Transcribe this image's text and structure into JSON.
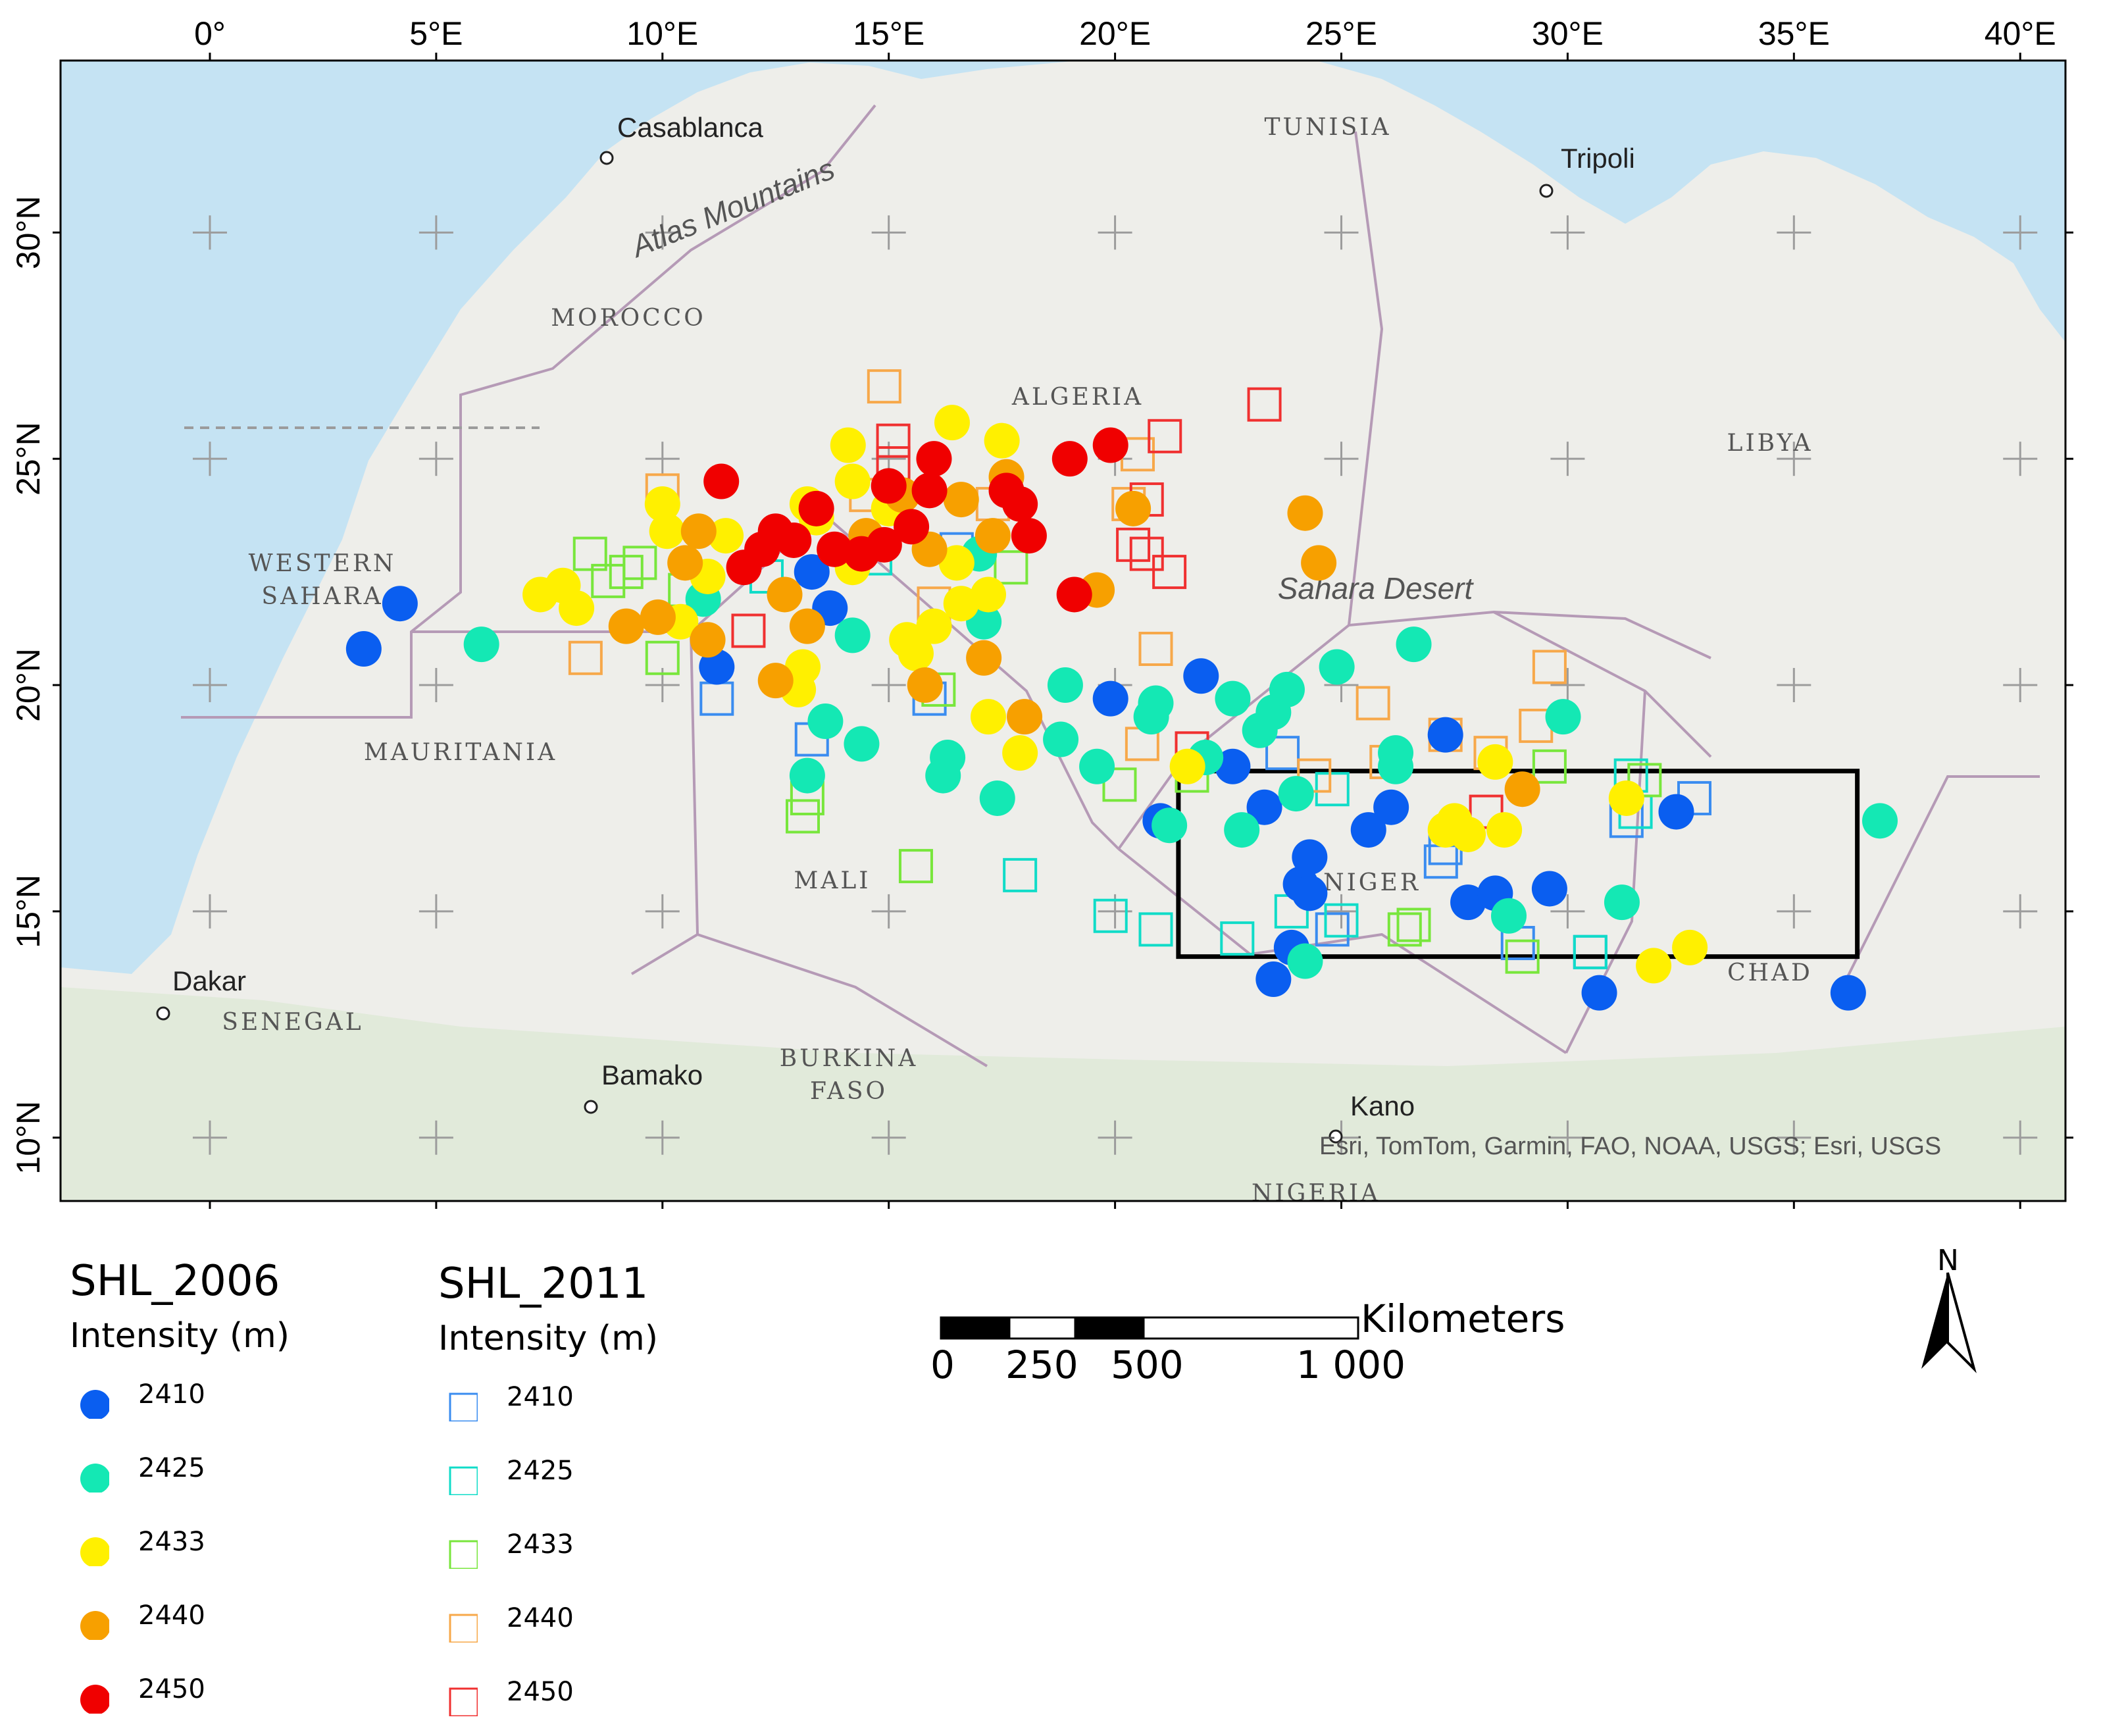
{
  "map": {
    "lon_ticks": [
      "0°",
      "5°E",
      "10°E",
      "15°E",
      "20°E",
      "25°E",
      "30°E",
      "35°E",
      "40°E"
    ],
    "lat_ticks": [
      "10°N",
      "15°N",
      "20°N",
      "25°N",
      "30°N"
    ],
    "lon_values": [
      0,
      5,
      10,
      15,
      20,
      25,
      30,
      35,
      40
    ],
    "lat_values": [
      10,
      15,
      20,
      25,
      30
    ],
    "extent": {
      "lon_min": -3.3,
      "lon_max": 41.0,
      "lat_min": 8.6,
      "lat_max": 33.8
    },
    "country_labels": [
      "MOROCCO",
      "ALGERIA",
      "TUNISIA",
      "LIBYA",
      "WESTERN SAHARA",
      "MAURITANIA",
      "MALI",
      "NIGER",
      "CHAD",
      "SENEGAL",
      "BURKINA FASO",
      "NIGERIA"
    ],
    "place_labels": [
      "Casablanca",
      "Tripoli",
      "Dakar",
      "Bamako",
      "Kano"
    ],
    "physical_labels": [
      "Atlas Mountains",
      "Sahara Desert"
    ],
    "attribution": "Esri, TomTom, Garmin, FAO, NOAA, USGS; Esri, USGS",
    "study_area_box": {
      "lon_min": 21.4,
      "lon_max": 36.4,
      "lat_min": 14.0,
      "lat_max": 18.1
    },
    "colors": {
      "sea": "#c5e3f3",
      "land": "#eeeeea",
      "border": "#b59ab6",
      "frame": "#000000"
    }
  },
  "legend": {
    "shl_2006": {
      "title": "SHL_2006",
      "subtitle": "Intensity (m)",
      "symbol": "filled-circle",
      "items": [
        {
          "label": "2410",
          "color": "#0a5ef0"
        },
        {
          "label": "2425",
          "color": "#14e8b4"
        },
        {
          "label": "2433",
          "color": "#fff000"
        },
        {
          "label": "2440",
          "color": "#f7a000"
        },
        {
          "label": "2450",
          "color": "#f00000"
        }
      ]
    },
    "shl_2011": {
      "title": "SHL_2011",
      "subtitle": "Intensity (m)",
      "symbol": "hollow-square",
      "items": [
        {
          "label": "2410",
          "color": "#3a8cf0"
        },
        {
          "label": "2425",
          "color": "#10dcc8"
        },
        {
          "label": "2433",
          "color": "#78e63c"
        },
        {
          "label": "2440",
          "color": "#f7a84a"
        },
        {
          "label": "2450",
          "color": "#f03030"
        }
      ]
    }
  },
  "scale_bar": {
    "unit": "Kilometers",
    "labels": [
      "0",
      "250",
      "500",
      "1 000"
    ]
  },
  "north_arrow": {
    "label": "N"
  },
  "points_2006": [
    {
      "lon": 3.4,
      "lat": 20.8,
      "i": 0
    },
    {
      "lon": 4.2,
      "lat": 21.8,
      "i": 0
    },
    {
      "lon": 11.2,
      "lat": 20.4,
      "i": 0
    },
    {
      "lon": 13.3,
      "lat": 22.5,
      "i": 0
    },
    {
      "lon": 13.7,
      "lat": 21.7,
      "i": 0
    },
    {
      "lon": 19.9,
      "lat": 19.7,
      "i": 0
    },
    {
      "lon": 21.9,
      "lat": 20.2,
      "i": 0
    },
    {
      "lon": 23.3,
      "lat": 17.3,
      "i": 0
    },
    {
      "lon": 24.3,
      "lat": 16.2,
      "i": 0
    },
    {
      "lon": 24.1,
      "lat": 15.6,
      "i": 0
    },
    {
      "lon": 24.3,
      "lat": 15.4,
      "i": 0
    },
    {
      "lon": 23.9,
      "lat": 14.2,
      "i": 0
    },
    {
      "lon": 23.5,
      "lat": 13.5,
      "i": 0
    },
    {
      "lon": 25.6,
      "lat": 16.8,
      "i": 0
    },
    {
      "lon": 26.1,
      "lat": 17.3,
      "i": 0
    },
    {
      "lon": 27.3,
      "lat": 18.9,
      "i": 0
    },
    {
      "lon": 27.8,
      "lat": 15.2,
      "i": 0
    },
    {
      "lon": 28.4,
      "lat": 15.4,
      "i": 0
    },
    {
      "lon": 29.6,
      "lat": 15.5,
      "i": 0
    },
    {
      "lon": 30.7,
      "lat": 13.2,
      "i": 0
    },
    {
      "lon": 32.4,
      "lat": 17.2,
      "i": 0
    },
    {
      "lon": 36.2,
      "lat": 13.2,
      "i": 0
    },
    {
      "lon": 21.0,
      "lat": 17.0,
      "i": 0
    },
    {
      "lon": 22.6,
      "lat": 18.2,
      "i": 0
    },
    {
      "lon": 6.0,
      "lat": 20.9,
      "i": 1
    },
    {
      "lon": 10.9,
      "lat": 21.9,
      "i": 1
    },
    {
      "lon": 13.2,
      "lat": 18.0,
      "i": 1
    },
    {
      "lon": 13.6,
      "lat": 19.2,
      "i": 1
    },
    {
      "lon": 14.4,
      "lat": 18.7,
      "i": 1
    },
    {
      "lon": 14.2,
      "lat": 21.1,
      "i": 1
    },
    {
      "lon": 16.3,
      "lat": 18.4,
      "i": 1
    },
    {
      "lon": 16.2,
      "lat": 18.0,
      "i": 1
    },
    {
      "lon": 17.1,
      "lat": 21.4,
      "i": 1
    },
    {
      "lon": 17.0,
      "lat": 22.9,
      "i": 1
    },
    {
      "lon": 17.4,
      "lat": 17.5,
      "i": 1
    },
    {
      "lon": 18.8,
      "lat": 18.8,
      "i": 1
    },
    {
      "lon": 18.9,
      "lat": 20.0,
      "i": 1
    },
    {
      "lon": 19.6,
      "lat": 18.2,
      "i": 1
    },
    {
      "lon": 20.9,
      "lat": 19.6,
      "i": 1
    },
    {
      "lon": 20.8,
      "lat": 19.3,
      "i": 1
    },
    {
      "lon": 21.2,
      "lat": 16.9,
      "i": 1
    },
    {
      "lon": 22.0,
      "lat": 18.4,
      "i": 1
    },
    {
      "lon": 22.6,
      "lat": 19.7,
      "i": 1
    },
    {
      "lon": 22.8,
      "lat": 16.8,
      "i": 1
    },
    {
      "lon": 23.2,
      "lat": 19.0,
      "i": 1
    },
    {
      "lon": 23.5,
      "lat": 19.4,
      "i": 1
    },
    {
      "lon": 23.8,
      "lat": 19.9,
      "i": 1
    },
    {
      "lon": 24.0,
      "lat": 17.6,
      "i": 1
    },
    {
      "lon": 24.2,
      "lat": 13.9,
      "i": 1
    },
    {
      "lon": 24.9,
      "lat": 20.4,
      "i": 1
    },
    {
      "lon": 26.2,
      "lat": 18.5,
      "i": 1
    },
    {
      "lon": 26.2,
      "lat": 18.2,
      "i": 1
    },
    {
      "lon": 26.6,
      "lat": 20.9,
      "i": 1
    },
    {
      "lon": 28.7,
      "lat": 14.9,
      "i": 1
    },
    {
      "lon": 29.9,
      "lat": 19.3,
      "i": 1
    },
    {
      "lon": 31.2,
      "lat": 15.2,
      "i": 1
    },
    {
      "lon": 36.9,
      "lat": 17.0,
      "i": 1
    },
    {
      "lon": 7.3,
      "lat": 22.0,
      "i": 2
    },
    {
      "lon": 7.8,
      "lat": 22.2,
      "i": 2
    },
    {
      "lon": 8.1,
      "lat": 21.7,
      "i": 2
    },
    {
      "lon": 10.0,
      "lat": 24.0,
      "i": 2
    },
    {
      "lon": 10.1,
      "lat": 23.4,
      "i": 2
    },
    {
      "lon": 10.4,
      "lat": 21.4,
      "i": 2
    },
    {
      "lon": 11.0,
      "lat": 22.4,
      "i": 2
    },
    {
      "lon": 11.4,
      "lat": 23.3,
      "i": 2
    },
    {
      "lon": 13.1,
      "lat": 20.4,
      "i": 2
    },
    {
      "lon": 13.0,
      "lat": 19.9,
      "i": 2
    },
    {
      "lon": 13.2,
      "lat": 24.0,
      "i": 2
    },
    {
      "lon": 13.4,
      "lat": 23.7,
      "i": 2
    },
    {
      "lon": 14.1,
      "lat": 25.3,
      "i": 2
    },
    {
      "lon": 14.2,
      "lat": 24.5,
      "i": 2
    },
    {
      "lon": 14.2,
      "lat": 22.6,
      "i": 2
    },
    {
      "lon": 15.0,
      "lat": 23.9,
      "i": 2
    },
    {
      "lon": 15.6,
      "lat": 20.7,
      "i": 2
    },
    {
      "lon": 15.4,
      "lat": 21.0,
      "i": 2
    },
    {
      "lon": 16.0,
      "lat": 21.3,
      "i": 2
    },
    {
      "lon": 16.6,
      "lat": 21.8,
      "i": 2
    },
    {
      "lon": 16.4,
      "lat": 25.8,
      "i": 2
    },
    {
      "lon": 17.2,
      "lat": 22.0,
      "i": 2
    },
    {
      "lon": 17.5,
      "lat": 25.4,
      "i": 2
    },
    {
      "lon": 17.2,
      "lat": 19.3,
      "i": 2
    },
    {
      "lon": 17.9,
      "lat": 18.5,
      "i": 2
    },
    {
      "lon": 16.5,
      "lat": 22.7,
      "i": 2
    },
    {
      "lon": 21.6,
      "lat": 18.2,
      "i": 2
    },
    {
      "lon": 27.3,
      "lat": 16.8,
      "i": 2
    },
    {
      "lon": 27.5,
      "lat": 17.0,
      "i": 2
    },
    {
      "lon": 27.8,
      "lat": 16.7,
      "i": 2
    },
    {
      "lon": 28.6,
      "lat": 16.8,
      "i": 2
    },
    {
      "lon": 28.4,
      "lat": 18.3,
      "i": 2
    },
    {
      "lon": 31.3,
      "lat": 17.5,
      "i": 2
    },
    {
      "lon": 31.9,
      "lat": 13.8,
      "i": 2
    },
    {
      "lon": 32.7,
      "lat": 14.2,
      "i": 2
    },
    {
      "lon": 9.2,
      "lat": 21.3,
      "i": 3
    },
    {
      "lon": 9.9,
      "lat": 21.5,
      "i": 3
    },
    {
      "lon": 10.5,
      "lat": 22.7,
      "i": 3
    },
    {
      "lon": 10.8,
      "lat": 23.4,
      "i": 3
    },
    {
      "lon": 11.0,
      "lat": 21.0,
      "i": 3
    },
    {
      "lon": 12.5,
      "lat": 20.1,
      "i": 3
    },
    {
      "lon": 12.7,
      "lat": 22.0,
      "i": 3
    },
    {
      "lon": 13.2,
      "lat": 21.3,
      "i": 3
    },
    {
      "lon": 14.5,
      "lat": 23.3,
      "i": 3
    },
    {
      "lon": 15.3,
      "lat": 24.2,
      "i": 3
    },
    {
      "lon": 15.9,
      "lat": 23.0,
      "i": 3
    },
    {
      "lon": 15.8,
      "lat": 20.0,
      "i": 3
    },
    {
      "lon": 16.6,
      "lat": 24.1,
      "i": 3
    },
    {
      "lon": 17.1,
      "lat": 20.6,
      "i": 3
    },
    {
      "lon": 17.3,
      "lat": 23.3,
      "i": 3
    },
    {
      "lon": 17.6,
      "lat": 24.6,
      "i": 3
    },
    {
      "lon": 18.0,
      "lat": 19.3,
      "i": 3
    },
    {
      "lon": 19.6,
      "lat": 22.1,
      "i": 3
    },
    {
      "lon": 20.4,
      "lat": 23.9,
      "i": 3
    },
    {
      "lon": 24.2,
      "lat": 23.8,
      "i": 3
    },
    {
      "lon": 24.5,
      "lat": 22.7,
      "i": 3
    },
    {
      "lon": 29.0,
      "lat": 17.7,
      "i": 3
    },
    {
      "lon": 11.3,
      "lat": 24.5,
      "i": 4
    },
    {
      "lon": 11.8,
      "lat": 22.6,
      "i": 4
    },
    {
      "lon": 12.2,
      "lat": 23.0,
      "i": 4
    },
    {
      "lon": 12.5,
      "lat": 23.4,
      "i": 4
    },
    {
      "lon": 12.9,
      "lat": 23.2,
      "i": 4
    },
    {
      "lon": 13.4,
      "lat": 23.9,
      "i": 4
    },
    {
      "lon": 13.8,
      "lat": 23.0,
      "i": 4
    },
    {
      "lon": 14.4,
      "lat": 22.9,
      "i": 4
    },
    {
      "lon": 14.9,
      "lat": 23.1,
      "i": 4
    },
    {
      "lon": 15.0,
      "lat": 24.4,
      "i": 4
    },
    {
      "lon": 15.5,
      "lat": 23.5,
      "i": 4
    },
    {
      "lon": 15.9,
      "lat": 24.3,
      "i": 4
    },
    {
      "lon": 16.0,
      "lat": 25.0,
      "i": 4
    },
    {
      "lon": 17.6,
      "lat": 24.3,
      "i": 4
    },
    {
      "lon": 17.9,
      "lat": 24.0,
      "i": 4
    },
    {
      "lon": 18.1,
      "lat": 23.3,
      "i": 4
    },
    {
      "lon": 19.0,
      "lat": 25.0,
      "i": 4
    },
    {
      "lon": 19.9,
      "lat": 25.3,
      "i": 4
    },
    {
      "lon": 19.1,
      "lat": 22.0,
      "i": 4
    }
  ],
  "points_2011": [
    {
      "lon": 11.2,
      "lat": 19.7,
      "i": 0
    },
    {
      "lon": 13.3,
      "lat": 18.8,
      "i": 0
    },
    {
      "lon": 15.9,
      "lat": 19.7,
      "i": 0
    },
    {
      "lon": 16.5,
      "lat": 23.0,
      "i": 0
    },
    {
      "lon": 23.7,
      "lat": 18.5,
      "i": 0
    },
    {
      "lon": 27.2,
      "lat": 16.1,
      "i": 0
    },
    {
      "lon": 27.3,
      "lat": 16.4,
      "i": 0
    },
    {
      "lon": 28.9,
      "lat": 14.3,
      "i": 0
    },
    {
      "lon": 30.5,
      "lat": 14.1,
      "i": 0
    },
    {
      "lon": 31.3,
      "lat": 17.0,
      "i": 0
    },
    {
      "lon": 32.8,
      "lat": 17.5,
      "i": 0
    },
    {
      "lon": 24.8,
      "lat": 14.6,
      "i": 0
    },
    {
      "lon": 17.9,
      "lat": 15.8,
      "i": 1
    },
    {
      "lon": 19.9,
      "lat": 14.9,
      "i": 1
    },
    {
      "lon": 20.9,
      "lat": 14.6,
      "i": 1
    },
    {
      "lon": 22.7,
      "lat": 14.4,
      "i": 1
    },
    {
      "lon": 23.9,
      "lat": 15.0,
      "i": 1
    },
    {
      "lon": 25.0,
      "lat": 14.8,
      "i": 1
    },
    {
      "lon": 24.8,
      "lat": 17.7,
      "i": 1
    },
    {
      "lon": 30.5,
      "lat": 14.1,
      "i": 1
    },
    {
      "lon": 31.5,
      "lat": 17.2,
      "i": 1
    },
    {
      "lon": 31.4,
      "lat": 18.0,
      "i": 1
    },
    {
      "lon": 12.3,
      "lat": 22.4,
      "i": 1
    },
    {
      "lon": 14.7,
      "lat": 22.8,
      "i": 1
    },
    {
      "lon": 8.4,
      "lat": 22.9,
      "i": 2
    },
    {
      "lon": 8.8,
      "lat": 22.3,
      "i": 2
    },
    {
      "lon": 9.2,
      "lat": 22.5,
      "i": 2
    },
    {
      "lon": 9.5,
      "lat": 22.7,
      "i": 2
    },
    {
      "lon": 10.0,
      "lat": 20.6,
      "i": 2
    },
    {
      "lon": 10.5,
      "lat": 22.1,
      "i": 2
    },
    {
      "lon": 13.1,
      "lat": 17.1,
      "i": 2
    },
    {
      "lon": 13.2,
      "lat": 17.5,
      "i": 2
    },
    {
      "lon": 15.6,
      "lat": 16.0,
      "i": 2
    },
    {
      "lon": 16.1,
      "lat": 19.9,
      "i": 2
    },
    {
      "lon": 17.7,
      "lat": 22.6,
      "i": 2
    },
    {
      "lon": 20.1,
      "lat": 17.8,
      "i": 2
    },
    {
      "lon": 21.7,
      "lat": 18.0,
      "i": 2
    },
    {
      "lon": 26.4,
      "lat": 14.6,
      "i": 2
    },
    {
      "lon": 26.6,
      "lat": 14.7,
      "i": 2
    },
    {
      "lon": 29.0,
      "lat": 14.0,
      "i": 2
    },
    {
      "lon": 29.6,
      "lat": 18.2,
      "i": 2
    },
    {
      "lon": 31.7,
      "lat": 17.9,
      "i": 2
    },
    {
      "lon": 8.3,
      "lat": 20.6,
      "i": 3
    },
    {
      "lon": 10.0,
      "lat": 24.3,
      "i": 3
    },
    {
      "lon": 14.9,
      "lat": 26.6,
      "i": 3
    },
    {
      "lon": 14.5,
      "lat": 24.2,
      "i": 3
    },
    {
      "lon": 16.0,
      "lat": 21.8,
      "i": 3
    },
    {
      "lon": 20.5,
      "lat": 25.1,
      "i": 3
    },
    {
      "lon": 20.3,
      "lat": 24.0,
      "i": 3
    },
    {
      "lon": 20.9,
      "lat": 20.8,
      "i": 3
    },
    {
      "lon": 20.6,
      "lat": 18.7,
      "i": 3
    },
    {
      "lon": 24.4,
      "lat": 18.0,
      "i": 3
    },
    {
      "lon": 25.7,
      "lat": 19.6,
      "i": 3
    },
    {
      "lon": 26.0,
      "lat": 18.3,
      "i": 3
    },
    {
      "lon": 27.3,
      "lat": 18.9,
      "i": 3
    },
    {
      "lon": 28.3,
      "lat": 18.5,
      "i": 3
    },
    {
      "lon": 29.3,
      "lat": 19.1,
      "i": 3
    },
    {
      "lon": 29.6,
      "lat": 20.4,
      "i": 3
    },
    {
      "lon": 17.3,
      "lat": 24.0,
      "i": 3
    },
    {
      "lon": 15.1,
      "lat": 25.4,
      "i": 4
    },
    {
      "lon": 15.1,
      "lat": 24.9,
      "i": 4
    },
    {
      "lon": 21.1,
      "lat": 25.5,
      "i": 4
    },
    {
      "lon": 20.7,
      "lat": 24.1,
      "i": 4
    },
    {
      "lon": 20.4,
      "lat": 23.1,
      "i": 4
    },
    {
      "lon": 20.7,
      "lat": 22.9,
      "i": 4
    },
    {
      "lon": 21.2,
      "lat": 22.5,
      "i": 4
    },
    {
      "lon": 23.3,
      "lat": 26.2,
      "i": 4
    },
    {
      "lon": 21.7,
      "lat": 18.6,
      "i": 4
    },
    {
      "lon": 28.2,
      "lat": 17.2,
      "i": 4
    },
    {
      "lon": 11.9,
      "lat": 21.2,
      "i": 4
    }
  ]
}
